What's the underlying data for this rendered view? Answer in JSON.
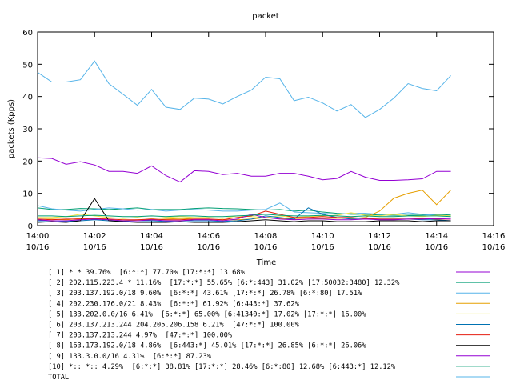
{
  "chart_data": {
    "type": "line",
    "title": "packet",
    "xlabel": "Time",
    "ylabel": "packets (Kpps)",
    "x": [
      0,
      0.5,
      1,
      1.5,
      2,
      2.5,
      3,
      3.5,
      4,
      4.5,
      5,
      5.5,
      6,
      6.5,
      7,
      7.5,
      8,
      8.5,
      9,
      9.5,
      10,
      10.5,
      11,
      11.5,
      12,
      12.5,
      13,
      13.5,
      14,
      14.5
    ],
    "xlim": [
      0,
      16
    ],
    "ylim": [
      0,
      60
    ],
    "yticks": [
      0,
      10,
      20,
      30,
      40,
      50,
      60
    ],
    "xticks": [
      {
        "value": 0,
        "label": "14:00\n10/16"
      },
      {
        "value": 2,
        "label": "14:02\n10/16"
      },
      {
        "value": 4,
        "label": "14:04\n10/16"
      },
      {
        "value": 6,
        "label": "14:06\n10/16"
      },
      {
        "value": 8,
        "label": "14:08\n10/16"
      },
      {
        "value": 10,
        "label": "14:10\n10/16"
      },
      {
        "value": 12,
        "label": "14:12\n10/16"
      },
      {
        "value": 14,
        "label": "14:14\n10/16"
      },
      {
        "value": 16,
        "label": "14:16\n10/16"
      }
    ],
    "series": [
      {
        "name": "[ 1] * * 39.76%  [6:*:*] 77.70% [17:*:*] 13.68%",
        "color": "#9400d3",
        "values": [
          21,
          20.8,
          19,
          19.8,
          18.8,
          16.8,
          16.8,
          16.2,
          18.5,
          15.5,
          13.5,
          17,
          16.8,
          15.8,
          16.2,
          15.3,
          15.3,
          16.2,
          16.2,
          15.3,
          14.2,
          14.6,
          16.8,
          15,
          14,
          14,
          14.2,
          14.5,
          16.8,
          16.8
        ]
      },
      {
        "name": "[ 2] 202.115.223.4 * 11.16%  [17:*:*] 55.65% [6:*:443] 31.02% [17:50032:3480] 12.32%",
        "color": "#009e73",
        "values": [
          5.5,
          5,
          5,
          5.3,
          5.2,
          5,
          5.2,
          5.5,
          5,
          5,
          5,
          5.3,
          5.5,
          5.3,
          5.2,
          5,
          4.8,
          5,
          4.5,
          4.8,
          4.2,
          3.8,
          3.5,
          3.5,
          3.3,
          3.2,
          3.2,
          3.3,
          3.5,
          3.3
        ]
      },
      {
        "name": "[ 3] 203.137.192.0/18 9.60%  [6:*:*] 43.61% [17:*:*] 26.78% [6:*:80] 17.51%",
        "color": "#56b4e9",
        "values": [
          6.2,
          5.2,
          4.8,
          4.5,
          5,
          5.5,
          5.2,
          4.8,
          5,
          4.5,
          4.8,
          5,
          4.8,
          4.5,
          4.5,
          4.8,
          5,
          7,
          4.2,
          4,
          3.8,
          3.5,
          3.8,
          3.8,
          3.5,
          3.5,
          4,
          3.5,
          3.2,
          3
        ]
      },
      {
        "name": "[ 4] 202.230.176.0/21 8.43%  [6:*:*] 61.92% [6:443:*] 37.62%",
        "color": "#e69f00",
        "values": [
          2,
          2,
          1.8,
          2.2,
          2,
          1.8,
          1.5,
          1.8,
          1.8,
          2,
          2.2,
          2,
          2,
          1.8,
          1.8,
          2,
          2.5,
          2.2,
          2,
          2,
          2.2,
          2.3,
          2.2,
          2.5,
          4.5,
          8.5,
          10,
          11,
          6.5,
          11
        ]
      },
      {
        "name": "[ 5] 133.202.0.0/16 6.41%  [6:*:*] 65.00% [6:41340:*] 17.02% [17:*:*] 16.00%",
        "color": "#f0e442",
        "values": [
          2.5,
          2.5,
          2.8,
          3.5,
          3,
          2.5,
          2.2,
          2.5,
          2.2,
          2.5,
          2.8,
          2.5,
          2.5,
          2.2,
          3,
          2.8,
          2.5,
          3,
          2.5,
          2.8,
          3,
          3.2,
          4,
          3.2,
          3,
          3.5,
          3,
          2.8,
          3.2,
          3
        ]
      },
      {
        "name": "[ 6] 203.137.213.244 204.205.206.158 6.21%  [47:*:*] 100.00%",
        "color": "#0072b2",
        "values": [
          1.5,
          1.5,
          1.3,
          1.5,
          1.8,
          1.5,
          1.3,
          1.5,
          1.5,
          1.3,
          1.5,
          1.5,
          1.5,
          1.3,
          1.5,
          2,
          3,
          2.5,
          2,
          5.5,
          3.5,
          2.5,
          2,
          2,
          2,
          2,
          2,
          1.8,
          1.8,
          1.5
        ]
      },
      {
        "name": "[ 7] 203.137.213.244 4.97%  [47:*:*] 100.00%",
        "color": "#e51e10",
        "values": [
          2,
          1.8,
          2,
          2,
          2.2,
          2,
          1.8,
          1.8,
          2,
          1.8,
          1.8,
          2,
          2,
          1.8,
          2.5,
          3,
          4.5,
          3.5,
          2.5,
          2.5,
          2.8,
          2.5,
          2.5,
          2.2,
          2,
          2,
          2,
          2.2,
          2,
          2
        ]
      },
      {
        "name": "[ 8] 163.173.192.0/18 4.86%  [6:443:*] 45.01% [17:*:*] 26.85% [6:*:*] 26.06%",
        "color": "#000000",
        "values": [
          1,
          1.2,
          1,
          1.5,
          8.4,
          1.5,
          1.2,
          1,
          1,
          1,
          1.2,
          1,
          1,
          1,
          1.2,
          1.5,
          1.8,
          1.5,
          1.2,
          1.5,
          1.5,
          1.2,
          1.2,
          1.2,
          1.5,
          1.5,
          1.5,
          1.2,
          1.5,
          1.5
        ]
      },
      {
        "name": "[ 9] 133.3.0.0/16 4.31%  [6:*:*] 87.23%",
        "color": "#9400d3",
        "values": [
          1.8,
          1.5,
          1.5,
          1.8,
          2,
          1.8,
          1.5,
          1.5,
          1.8,
          1.5,
          1.5,
          1.8,
          1.8,
          1.5,
          2,
          3.5,
          2.5,
          2,
          1.8,
          2,
          2,
          1.8,
          1.8,
          2,
          1.8,
          1.8,
          2,
          2,
          2.2,
          2
        ]
      },
      {
        "name": "[10] *:: *:: 4.29%  [6:*:*] 38.81% [17:*:*] 28.46% [6:*:80] 12.68% [6:443:*] 12.12%",
        "color": "#009e73",
        "values": [
          3,
          3,
          2.8,
          3,
          3.2,
          3,
          2.8,
          2.8,
          3,
          2.8,
          3,
          3,
          2.8,
          2.8,
          3,
          3.2,
          3.5,
          3.2,
          3,
          3,
          3.2,
          3,
          2.8,
          3,
          2.8,
          2.8,
          3,
          3,
          3,
          2.8
        ]
      },
      {
        "name": "TOTAL",
        "color": "#56b4e9",
        "values": [
          47.5,
          44.5,
          44.5,
          45.2,
          51,
          44,
          40.7,
          37.3,
          42.2,
          36.7,
          36,
          39.5,
          39.2,
          37.7,
          40,
          42,
          46,
          45.5,
          38.7,
          39.8,
          38,
          35.5,
          37.5,
          33.5,
          36,
          39.5,
          44,
          42.5,
          41.8,
          46.5
        ]
      }
    ]
  }
}
